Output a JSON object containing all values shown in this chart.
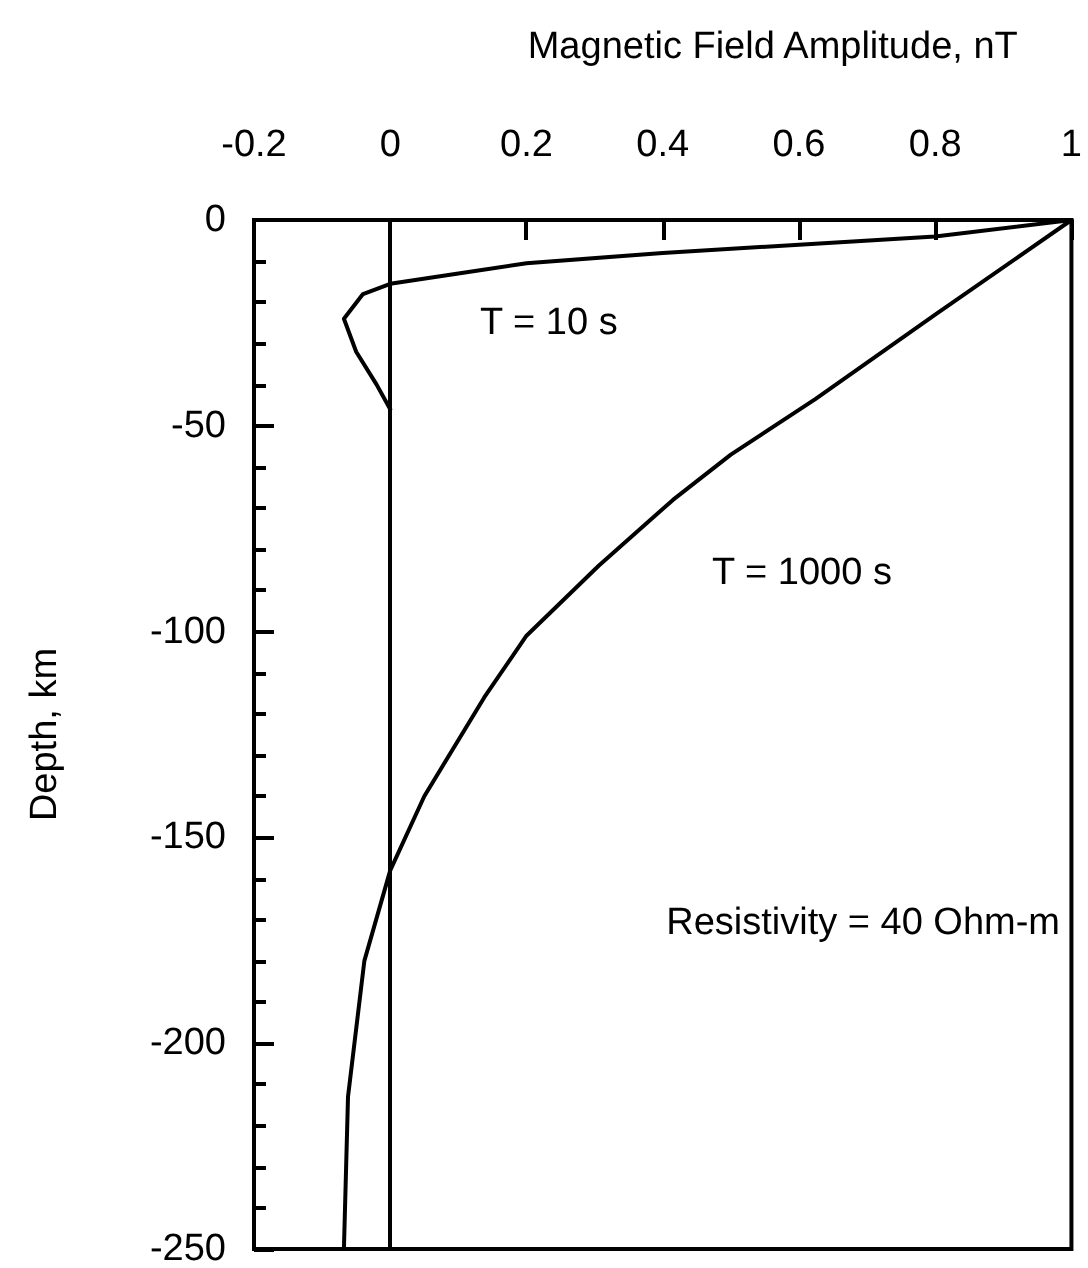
{
  "chart_data": {
    "type": "line",
    "xlabel": "Magnetic Field Amplitude, nT",
    "ylabel": "Depth, km",
    "xlim": [
      -0.2,
      1
    ],
    "xticks": [
      -0.2,
      0,
      0.2,
      0.4,
      0.6,
      0.8,
      1
    ],
    "ylim": [
      -250,
      0
    ],
    "yticks": [
      -250,
      -200,
      -150,
      -100,
      -50,
      0
    ],
    "series": [
      {
        "name": "T = 10 s",
        "color": "#000000",
        "x": [
          1,
          0.8,
          0.6,
          0.4,
          0.2,
          0.1,
          0,
          -0.04,
          -0.068,
          -0.05,
          -0.02,
          0
        ],
        "values": [
          0,
          -4,
          -6,
          -8,
          -10.5,
          -13,
          -15.5,
          -18,
          -24,
          -32,
          -40,
          -46
        ]
      },
      {
        "name": "T = 1000 s",
        "color": "#000000",
        "x": [
          1,
          0.8,
          0.624,
          0.5,
          0.415,
          0.306,
          0.2,
          0.138,
          0.05,
          0,
          -0.038,
          -0.062,
          -0.068
        ],
        "values": [
          0,
          -23,
          -43.5,
          -57,
          -68,
          -84,
          -101,
          -116,
          -140,
          -158,
          -180,
          -213,
          -250
        ]
      }
    ],
    "ref_lines": [
      {
        "axis": "x",
        "value": 0,
        "color": "#000000"
      }
    ],
    "annotations": [
      "Resistivity = 40 Ohm-m"
    ],
    "grid": false,
    "marker": "none",
    "line_style": "solid"
  }
}
